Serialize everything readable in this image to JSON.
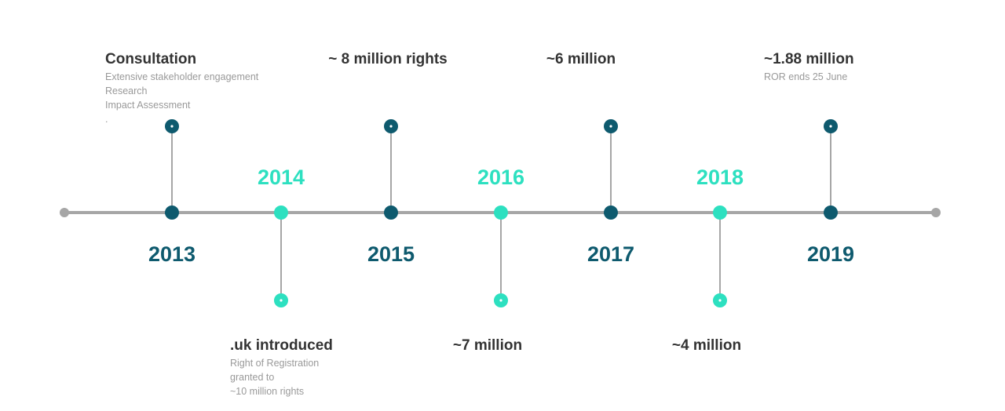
{
  "timeline": {
    "events": [
      {
        "year": "2013",
        "title": "Consultation",
        "details": [
          "Extensive stakeholder engagement",
          "Research",
          "Impact Assessment",
          "."
        ]
      },
      {
        "year": "2014",
        "title": ".uk introduced",
        "details": [
          "Right of Registration",
          "granted to",
          "~10 million rights"
        ]
      },
      {
        "year": "2015",
        "title": "~ 8 million rights",
        "details": []
      },
      {
        "year": "2016",
        "title": "~7 million",
        "details": []
      },
      {
        "year": "2017",
        "title": "~6 million",
        "details": []
      },
      {
        "year": "2018",
        "title": "~4 million",
        "details": []
      },
      {
        "year": "2019",
        "title": "~1.88 million",
        "details": [
          "ROR ends  25 June"
        ]
      }
    ]
  }
}
